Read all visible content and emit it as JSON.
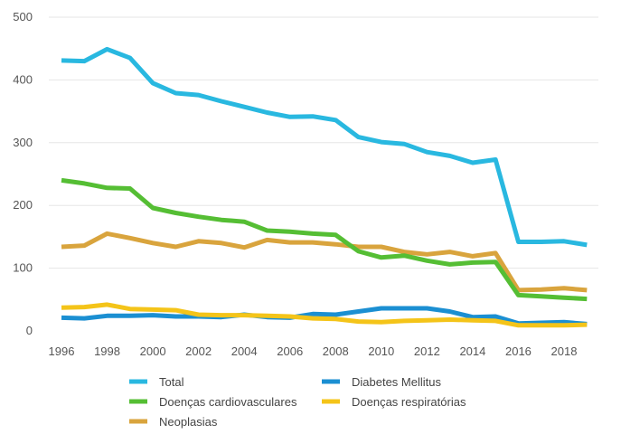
{
  "chart_data": {
    "type": "line",
    "x": [
      1996,
      1997,
      1998,
      1999,
      2000,
      2001,
      2002,
      2003,
      2004,
      2005,
      2006,
      2007,
      2008,
      2009,
      2010,
      2011,
      2012,
      2013,
      2014,
      2015,
      2016,
      2017,
      2018,
      2019
    ],
    "x_tick_labels": [
      "1996",
      "1998",
      "2000",
      "2002",
      "2004",
      "2006",
      "2008",
      "2010",
      "2012",
      "2014",
      "2016",
      "2018"
    ],
    "y_tick_labels": [
      "0",
      "100",
      "200",
      "300",
      "400",
      "500"
    ],
    "ylim": [
      0,
      500
    ],
    "grid": "horizontal",
    "legend_position": "bottom",
    "series": [
      {
        "name": "Total",
        "color": "#29B8E0",
        "values": [
          431,
          430,
          449,
          435,
          395,
          379,
          376,
          366,
          357,
          348,
          341,
          342,
          336,
          309,
          301,
          298,
          285,
          279,
          268,
          273,
          142,
          142,
          143,
          137
        ]
      },
      {
        "name": "Diabetes Mellitus",
        "color": "#1B8FD2",
        "values": [
          21,
          20,
          24,
          24,
          25,
          23,
          23,
          22,
          26,
          22,
          21,
          27,
          26,
          31,
          36,
          36,
          36,
          31,
          22,
          23,
          12,
          13,
          14,
          11
        ]
      },
      {
        "name": "Doenças cardiovasculares",
        "color": "#55BE34",
        "values": [
          240,
          235,
          228,
          227,
          196,
          188,
          182,
          177,
          174,
          160,
          158,
          155,
          153,
          127,
          117,
          120,
          112,
          106,
          109,
          110,
          57,
          55,
          53,
          51
        ]
      },
      {
        "name": "Doenças respiratórias",
        "color": "#F4C419",
        "values": [
          37,
          38,
          42,
          35,
          34,
          33,
          26,
          25,
          25,
          24,
          23,
          20,
          19,
          15,
          14,
          16,
          17,
          18,
          17,
          16,
          9,
          9,
          9,
          10
        ]
      },
      {
        "name": "Neoplasias",
        "color": "#D9A43D",
        "values": [
          134,
          136,
          155,
          148,
          140,
          134,
          143,
          140,
          133,
          145,
          141,
          141,
          138,
          134,
          134,
          126,
          122,
          126,
          119,
          124,
          65,
          66,
          68,
          65
        ]
      }
    ]
  }
}
